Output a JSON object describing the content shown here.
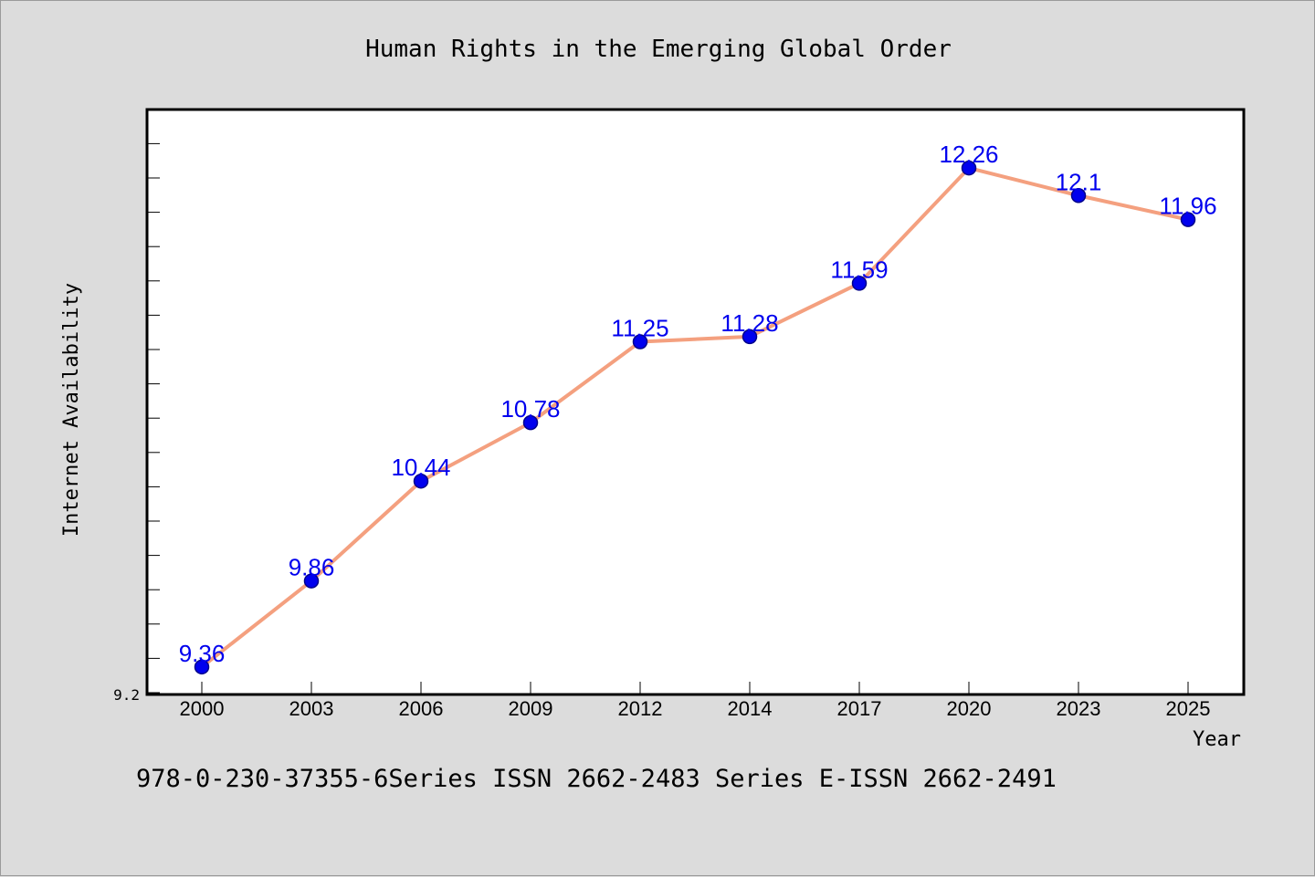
{
  "colors": {
    "background": "#dcdcdc",
    "plot_background": "#ffffff",
    "line": "#f4a07f",
    "marker_fill": "#0000ee",
    "marker_stroke": "#00008b",
    "data_label": "#0000ee"
  },
  "footer": {
    "text": "978-0-230-37355-6Series ISSN 2662-2483 Series E-ISSN 2662-2491"
  },
  "chart_data": {
    "type": "line",
    "title": "Human Rights in the Emerging Global Order",
    "xlabel": "Year",
    "ylabel": "Internet Availability",
    "categories": [
      "2000",
      "2003",
      "2006",
      "2009",
      "2012",
      "2014",
      "2017",
      "2020",
      "2023",
      "2025"
    ],
    "series": [
      {
        "values": [
          9.36,
          9.86,
          10.44,
          10.78,
          11.25,
          11.28,
          11.59,
          12.26,
          12.1,
          11.96
        ],
        "labels": [
          "9.36",
          "9.86",
          "10.44",
          "10.78",
          "11.25",
          "11.28",
          "11.59",
          "12.26",
          "12.1",
          "11.96"
        ]
      }
    ],
    "ylim": [
      9.2,
      12.6
    ],
    "y_min_label": "9.2",
    "grid": false,
    "legend": "none"
  }
}
